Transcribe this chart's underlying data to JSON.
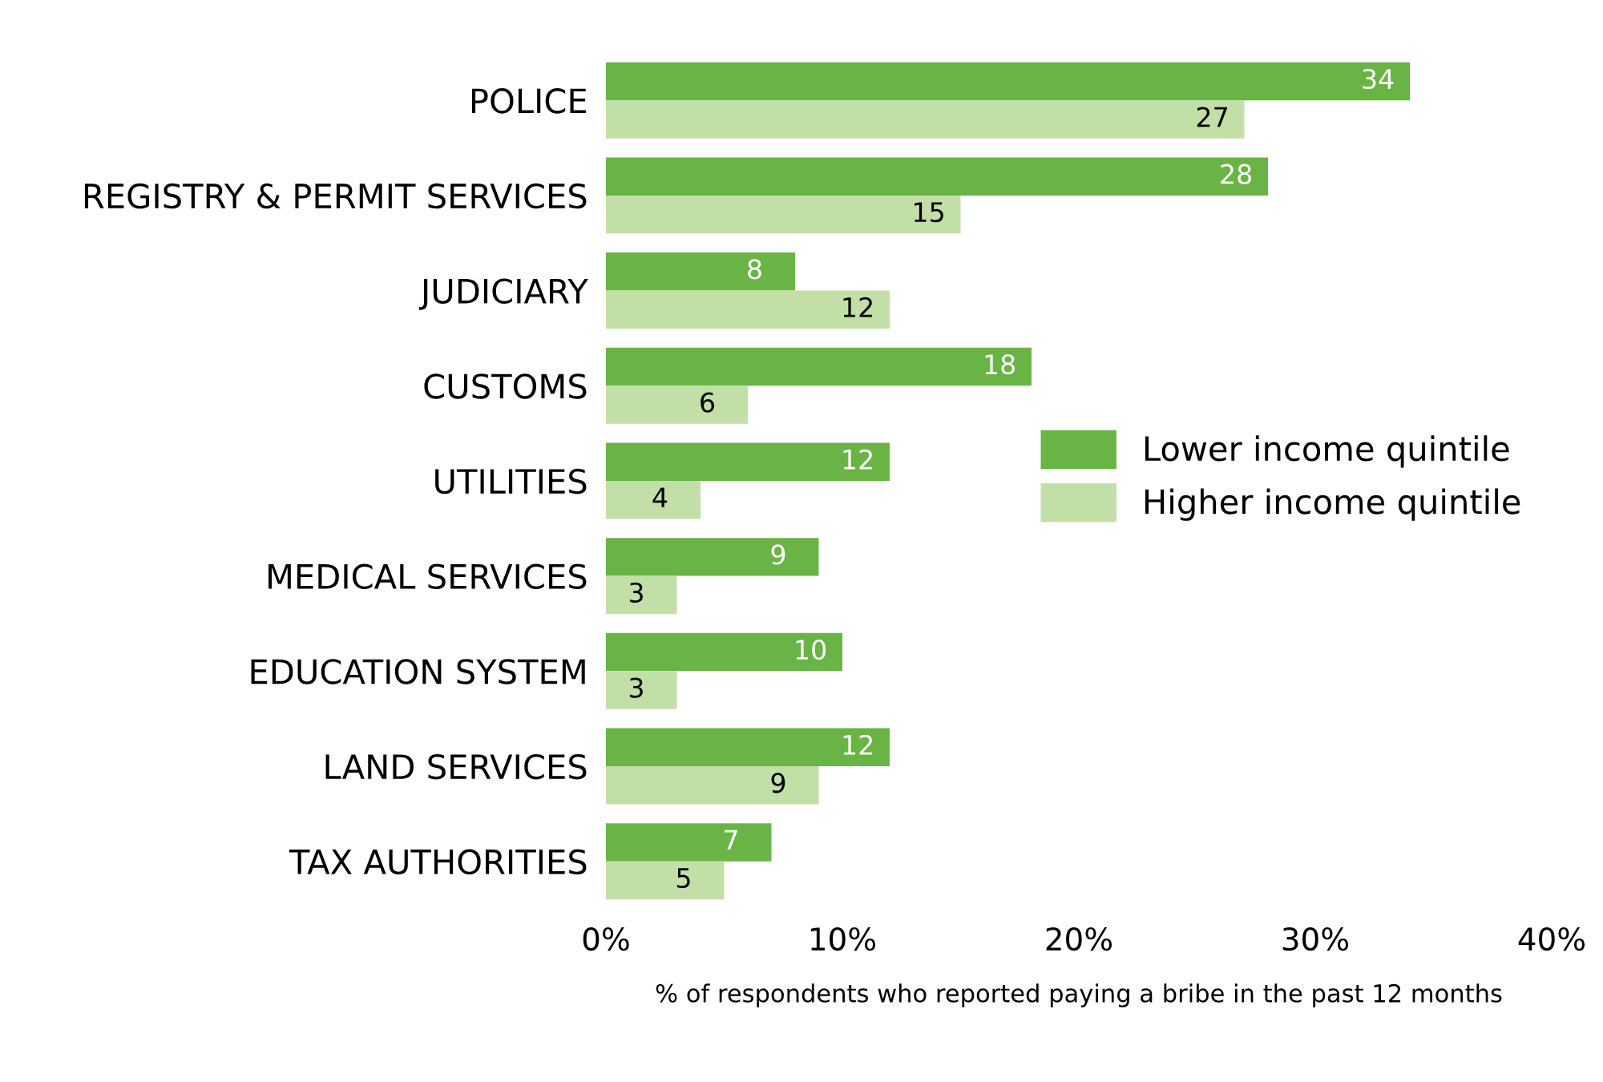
{
  "chart_data": {
    "type": "bar",
    "orientation": "horizontal",
    "categories": [
      "POLICE",
      "REGISTRY & PERMIT SERVICES",
      "JUDICIARY",
      "CUSTOMS",
      "UTILITIES",
      "MEDICAL SERVICES",
      "EDUCATION SYSTEM",
      "LAND SERVICES",
      "TAX AUTHORITIES"
    ],
    "series": [
      {
        "name": "Lower income quintile",
        "color": "#6ab446",
        "values": [
          34,
          28,
          8,
          18,
          12,
          9,
          10,
          12,
          7
        ]
      },
      {
        "name": "Higher income quintile",
        "color": "#c3dfa8",
        "values": [
          27,
          15,
          12,
          6,
          4,
          3,
          3,
          9,
          5
        ]
      }
    ],
    "xlim": [
      0,
      40
    ],
    "xticks": [
      {
        "value": 0,
        "label": "0%"
      },
      {
        "value": 10,
        "label": "10%"
      },
      {
        "value": 20,
        "label": "20%"
      },
      {
        "value": 30,
        "label": "30%"
      },
      {
        "value": 40,
        "label": "40%"
      }
    ],
    "xlabel": "% of respondents who reported paying a bribe in the past 12 months",
    "data_labels": true,
    "legend": "right",
    "grid": false
  }
}
